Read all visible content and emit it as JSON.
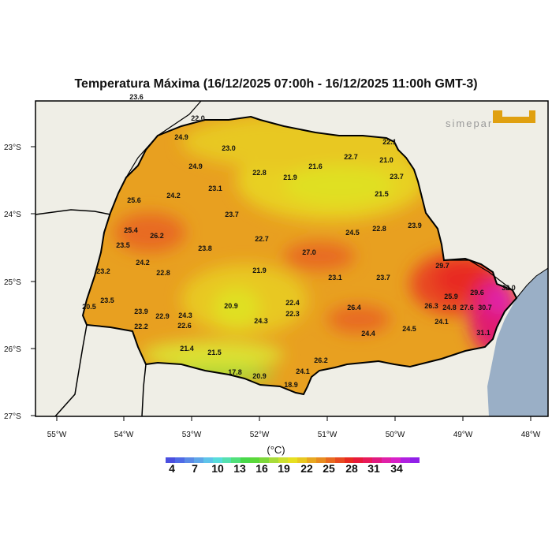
{
  "title": "Temperatura Máxima (16/12/2025 07:00h - 16/12/2025 11:00h GMT-3)",
  "logo_text": "SIMEPAR",
  "lat_ticks": [
    "23°S",
    "24°S",
    "25°S",
    "26°S",
    "27°S"
  ],
  "lon_ticks": [
    "55°W",
    "54°W",
    "53°W",
    "52°W",
    "51°W",
    "50°W",
    "49°W",
    "48°W"
  ],
  "stations": [
    "23.6",
    "22.0",
    "24.9",
    "23.0",
    "24.9",
    "22.8",
    "21.9",
    "21.6",
    "22.7",
    "21.0",
    "22.1",
    "23.7",
    "21.5",
    "25.6",
    "24.2",
    "23.1",
    "23.7",
    "25.4",
    "26.2",
    "23.5",
    "23.8",
    "22.7",
    "24.5",
    "22.8",
    "23.9",
    "27.0",
    "24.2",
    "22.8",
    "23.2",
    "21.9",
    "23.1",
    "23.7",
    "29.7",
    "23.5",
    "20.9",
    "22.4",
    "22.3",
    "26.4",
    "23.9",
    "22.9",
    "24.3",
    "22.6",
    "22.2",
    "24.3",
    "24.4",
    "24.5",
    "24.1",
    "21.4",
    "21.5",
    "17.8",
    "20.9",
    "18.9",
    "24.1",
    "26.2",
    "25.9",
    "26.3",
    "24.8",
    "27.6",
    "30.7",
    "29.6",
    "32.0",
    "31.1",
    "20.5"
  ],
  "colorbar": {
    "unit": "(°C)",
    "labels": [
      "4",
      "7",
      "10",
      "13",
      "16",
      "19",
      "22",
      "25",
      "28",
      "31",
      "34"
    ],
    "colors": [
      "#4a4fe0",
      "#4f6ae6",
      "#5a8ae6",
      "#5fa6e8",
      "#5fc4ea",
      "#58dcdc",
      "#55e0b0",
      "#50e07a",
      "#48d84a",
      "#5ad83a",
      "#7ed83a",
      "#a8dc3a",
      "#cce030",
      "#e6e020",
      "#e8c820",
      "#e8a820",
      "#e88c20",
      "#e86a20",
      "#e84a20",
      "#e82a20",
      "#e81a3a",
      "#e81a5a",
      "#e01a80",
      "#e020a8",
      "#d820c8",
      "#b020e0",
      "#9020e8"
    ]
  },
  "colors": {
    "land": "#efeee6",
    "ocean": "#9aafc6",
    "base": "#e8a020"
  }
}
